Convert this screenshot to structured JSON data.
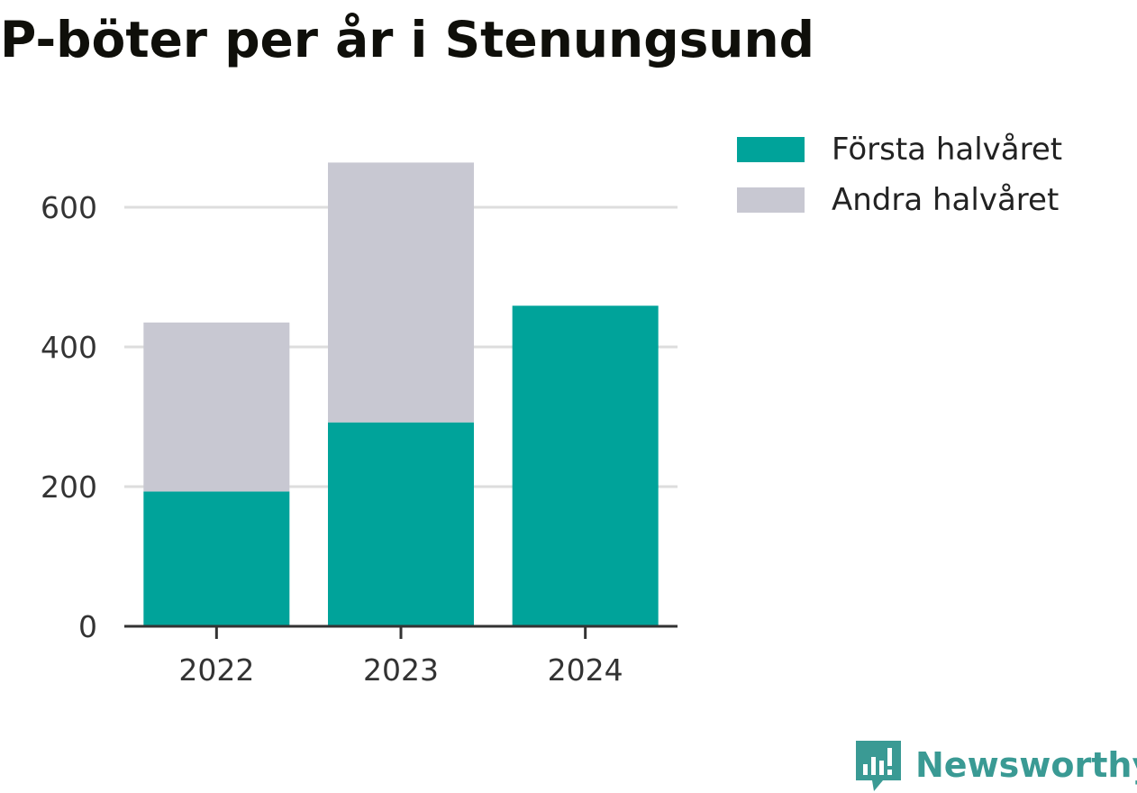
{
  "title": "P-böter per år i Stenungsund",
  "chart_data": {
    "type": "bar",
    "stacked": true,
    "title": "P-böter per år i Stenungsund",
    "categories": [
      "2022",
      "2023",
      "2024"
    ],
    "series": [
      {
        "name": "Första halvåret",
        "color": "#00a39a",
        "values": [
          193,
          292,
          459
        ]
      },
      {
        "name": "Andra halvåret",
        "color": "#c8c8d2",
        "values": [
          242,
          372,
          0
        ]
      }
    ],
    "ylim": [
      0,
      700
    ],
    "yticks": [
      0,
      200,
      400,
      600
    ],
    "ytick_labels": [
      "0",
      "200",
      "400",
      "600"
    ],
    "xlabel": "",
    "ylabel": "",
    "grid": true,
    "legend": "right"
  },
  "legend": [
    {
      "label": "Första halvåret",
      "color": "#00a39a"
    },
    {
      "label": "Andra halvåret",
      "color": "#c8c8d2"
    }
  ],
  "brand": {
    "name": "Newsworthy",
    "icon": "newsworthy-logo-icon",
    "color": "#3a9a94"
  }
}
